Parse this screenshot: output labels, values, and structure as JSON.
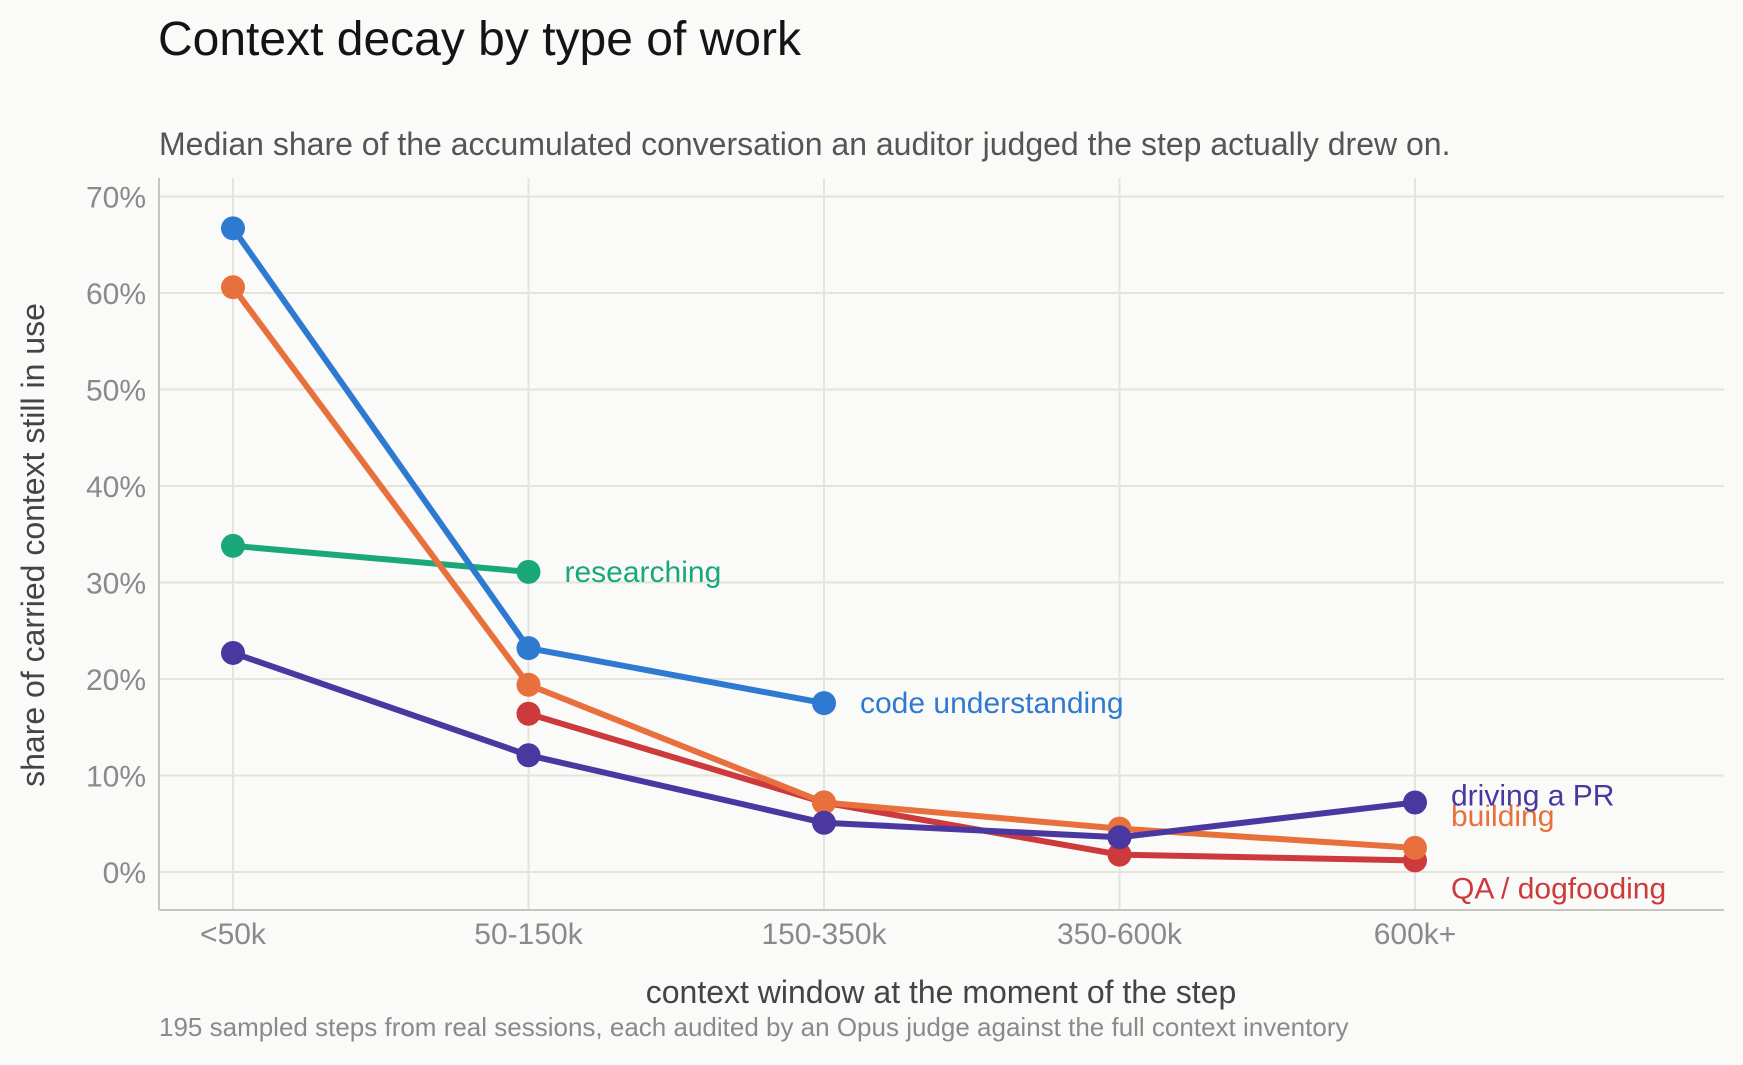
{
  "title": "Context decay by type of work",
  "subtitle": "Median share of the accumulated conversation an auditor judged the step actually drew on.",
  "caption": "195 sampled steps from real sessions, each audited by an Opus judge against the full context inventory",
  "chart_data": {
    "type": "line",
    "title": "Context decay by type of work",
    "xlabel": "context window at the moment of the step",
    "ylabel": "share of carried context still in use",
    "categories": [
      "<50k",
      "50-150k",
      "150-350k",
      "350-600k",
      "600k+"
    ],
    "ylim": [
      -0.04,
      0.72
    ],
    "yticks": [
      0,
      0.1,
      0.2,
      0.3,
      0.4,
      0.5,
      0.6,
      0.7
    ],
    "ytick_labels": [
      "0%",
      "10%",
      "20%",
      "30%",
      "40%",
      "50%",
      "60%",
      "70%"
    ],
    "grid": true,
    "legend": "direct labels at line ends",
    "series": [
      {
        "name": "researching",
        "color": "#1aa87b",
        "values": [
          0.338,
          0.311,
          null,
          null,
          null
        ]
      },
      {
        "name": "code understanding",
        "color": "#2f7ad1",
        "values": [
          0.667,
          0.232,
          0.175,
          null,
          null
        ]
      },
      {
        "name": "building",
        "color": "#e8703c",
        "values": [
          0.606,
          0.194,
          0.072,
          0.045,
          0.025
        ]
      },
      {
        "name": "QA / dogfooding",
        "color": "#cc3a3c",
        "values": [
          null,
          0.164,
          0.072,
          0.018,
          0.012
        ]
      },
      {
        "name": "driving a PR",
        "color": "#4a37a0",
        "values": [
          0.227,
          0.121,
          0.051,
          0.036,
          0.072
        ]
      }
    ]
  }
}
